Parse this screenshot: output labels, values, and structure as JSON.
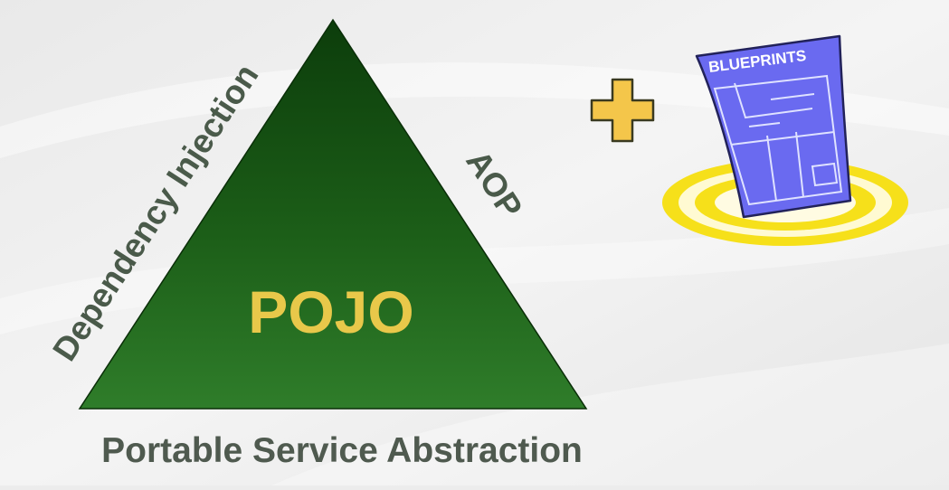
{
  "diagram": {
    "center_label": "POJO",
    "left_side_label": "Dependency Injection",
    "right_side_label": "AOP",
    "base_label": "Portable Service Abstraction",
    "blueprint_label": "BLUEPRINTS",
    "colors": {
      "triangle_dark": "#0a3a0a",
      "triangle_light": "#2f7d2a",
      "center_label": "#e8c84a",
      "side_labels": "#4a5a4a",
      "plus_fill": "#f4c64a",
      "halo": "#f7e21b",
      "paper": "#6a6af0"
    },
    "icons": [
      "plus-icon",
      "blueprint-icon"
    ]
  }
}
